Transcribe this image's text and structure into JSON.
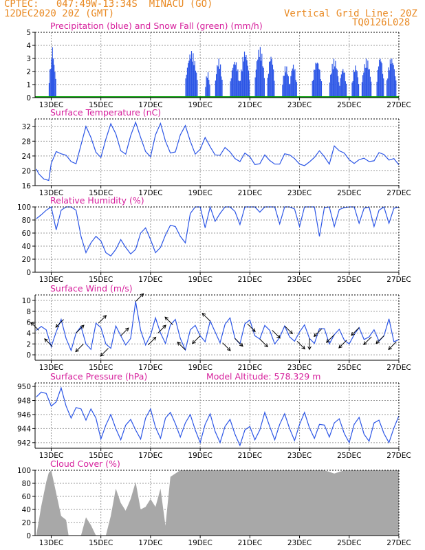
{
  "header": {
    "line1_left": "CPTEC:   047:49W-13:34S  MINACU (GO)",
    "line2_left": "12DEC2020 20Z (GMT)",
    "line2_right": "Vertical Grid Line: 20Z",
    "code": "TQ0126L028"
  },
  "colors": {
    "header_text": "#e98a24",
    "panel_title": "#d6209c",
    "series_line": "#2b55e6",
    "snow": "#00a000",
    "cloud_fill": "#a8a8a8",
    "grid": "#999999"
  },
  "chart_data": [
    {
      "id": "precip",
      "type": "bar",
      "title": "Precipitation (blue) and Snow Fall (green) (mm/h)",
      "ylim": [
        0,
        5
      ],
      "yticks": [
        0,
        1,
        2,
        3,
        4,
        5
      ],
      "xlim": [
        12.35,
        27.0
      ],
      "xticks": [
        "13DEC",
        "15DEC",
        "17DEC",
        "19DEC",
        "21DEC",
        "23DEC",
        "25DEC",
        "27DEC"
      ],
      "grid": true,
      "note_series": [
        {
          "name": "Precipitation"
        },
        {
          "name": "Snow Fall"
        }
      ],
      "snow_values": 0,
      "rain_bursts": [
        [
          12.9,
          13.2,
          3.2
        ],
        [
          13.0,
          13.1,
          4.5
        ],
        [
          18.4,
          18.9,
          3.6
        ],
        [
          19.2,
          19.4,
          2.0
        ],
        [
          19.6,
          19.9,
          3.0
        ],
        [
          20.2,
          20.6,
          2.9
        ],
        [
          20.6,
          21.0,
          3.6
        ],
        [
          21.2,
          21.6,
          3.9
        ],
        [
          21.7,
          22.0,
          3.3
        ],
        [
          22.3,
          22.6,
          2.5
        ],
        [
          22.6,
          22.9,
          2.6
        ],
        [
          23.5,
          23.9,
          2.9
        ],
        [
          24.2,
          24.6,
          3.0
        ],
        [
          24.6,
          24.9,
          2.3
        ],
        [
          25.1,
          25.4,
          2.5
        ],
        [
          25.5,
          25.9,
          3.0
        ],
        [
          26.1,
          26.4,
          3.2
        ],
        [
          26.5,
          26.9,
          3.1
        ]
      ]
    },
    {
      "id": "temp",
      "type": "line",
      "title": "Surface Temperature (nC)",
      "ylim": [
        16,
        34
      ],
      "yticks": [
        16,
        20,
        24,
        28,
        32
      ],
      "xlim": [
        12.35,
        27.0
      ],
      "xticks": [
        "13DEC",
        "15DEC",
        "17DEC",
        "19DEC",
        "21DEC",
        "23DEC",
        "25DEC",
        "27DEC"
      ],
      "grid": true,
      "x": [
        12.4,
        12.5,
        12.7,
        12.9,
        13.0,
        13.2,
        13.4,
        13.6,
        13.8,
        14.0,
        14.2,
        14.4,
        14.6,
        14.8,
        15.0,
        15.2,
        15.4,
        15.6,
        15.8,
        16.0,
        16.2,
        16.4,
        16.6,
        16.8,
        17.0,
        17.2,
        17.4,
        17.6,
        17.8,
        18.0,
        18.2,
        18.4,
        18.6,
        18.8,
        19.0,
        19.2,
        19.4,
        19.6,
        19.8,
        20.0,
        20.2,
        20.4,
        20.6,
        20.8,
        21.0,
        21.2,
        21.4,
        21.6,
        21.8,
        22.0,
        22.2,
        22.4,
        22.6,
        22.8,
        23.0,
        23.2,
        23.4,
        23.6,
        23.8,
        24.0,
        24.2,
        24.4,
        24.6,
        24.8,
        25.0,
        25.2,
        25.4,
        25.6,
        25.8,
        26.0,
        26.2,
        26.4,
        26.6,
        26.8,
        27.0
      ],
      "values": [
        20.5,
        19.2,
        17.8,
        17.4,
        22.0,
        25.2,
        24.6,
        24.2,
        22.5,
        21.9,
        27.0,
        32.0,
        29.0,
        25.0,
        23.6,
        28.5,
        32.7,
        30.0,
        25.4,
        24.5,
        29.5,
        33.1,
        29.0,
        25.2,
        23.8,
        29.7,
        32.8,
        28.0,
        24.8,
        25.1,
        29.7,
        32.2,
        28.0,
        24.5,
        25.8,
        29.0,
        26.5,
        24.3,
        24.2,
        26.3,
        25.1,
        23.3,
        22.5,
        24.8,
        23.8,
        21.7,
        21.9,
        24.3,
        22.8,
        21.8,
        21.8,
        24.6,
        24.3,
        23.3,
        21.8,
        21.4,
        22.4,
        23.6,
        25.4,
        23.8,
        21.8,
        26.7,
        25.4,
        24.8,
        23.0,
        22.0,
        23.0,
        23.4,
        22.5,
        22.7,
        24.9,
        24.4,
        22.9,
        23.3,
        21.6
      ]
    },
    {
      "id": "rh",
      "type": "line",
      "title": "Relative Humidity (%)",
      "ylim": [
        0,
        100
      ],
      "yticks": [
        0,
        20,
        40,
        60,
        80,
        100
      ],
      "xlim": [
        12.35,
        27.0
      ],
      "xticks": [
        "13DEC",
        "15DEC",
        "17DEC",
        "19DEC",
        "21DEC",
        "23DEC",
        "25DEC",
        "27DEC"
      ],
      "grid": true,
      "x": [
        12.4,
        12.6,
        12.8,
        13.0,
        13.2,
        13.4,
        13.6,
        13.8,
        14.0,
        14.2,
        14.4,
        14.6,
        14.8,
        15.0,
        15.2,
        15.4,
        15.6,
        15.8,
        16.0,
        16.2,
        16.4,
        16.6,
        16.8,
        17.0,
        17.2,
        17.4,
        17.6,
        17.8,
        18.0,
        18.2,
        18.4,
        18.6,
        18.8,
        19.0,
        19.2,
        19.4,
        19.6,
        19.8,
        20.0,
        20.2,
        20.4,
        20.6,
        20.8,
        21.0,
        21.2,
        21.4,
        21.6,
        21.8,
        22.0,
        22.2,
        22.4,
        22.6,
        22.8,
        23.0,
        23.2,
        23.4,
        23.6,
        23.8,
        24.0,
        24.2,
        24.4,
        24.6,
        24.8,
        25.0,
        25.2,
        25.4,
        25.6,
        25.8,
        26.0,
        26.2,
        26.4,
        26.6,
        26.8,
        27.0
      ],
      "values": [
        82,
        88,
        95,
        100,
        65,
        95,
        100,
        100,
        95,
        55,
        30,
        45,
        55,
        48,
        30,
        25,
        35,
        50,
        38,
        28,
        35,
        60,
        68,
        50,
        30,
        38,
        57,
        72,
        70,
        55,
        45,
        90,
        100,
        100,
        68,
        100,
        78,
        90,
        100,
        100,
        93,
        73,
        100,
        100,
        100,
        92,
        100,
        100,
        100,
        74,
        100,
        100,
        97,
        70,
        100,
        100,
        100,
        55,
        99,
        100,
        70,
        96,
        99,
        100,
        100,
        75,
        98,
        100,
        70,
        95,
        100,
        75,
        98,
        100
      ]
    },
    {
      "id": "wind",
      "type": "line",
      "title": "Surface Wind (m/s)",
      "ylim": [
        -1,
        11
      ],
      "yticks": [
        0,
        2,
        4,
        6,
        8,
        10
      ],
      "xlim": [
        12.35,
        27.0
      ],
      "xticks": [
        "13DEC",
        "15DEC",
        "17DEC",
        "19DEC",
        "21DEC",
        "23DEC",
        "25DEC",
        "27DEC"
      ],
      "grid": true,
      "x": [
        12.4,
        12.6,
        12.8,
        13.0,
        13.2,
        13.4,
        13.6,
        13.8,
        14.0,
        14.2,
        14.4,
        14.6,
        14.8,
        15.0,
        15.2,
        15.4,
        15.6,
        15.8,
        16.0,
        16.2,
        16.4,
        16.6,
        16.8,
        17.0,
        17.2,
        17.4,
        17.6,
        17.8,
        18.0,
        18.2,
        18.4,
        18.6,
        18.8,
        19.0,
        19.2,
        19.4,
        19.6,
        19.8,
        20.0,
        20.2,
        20.4,
        20.6,
        20.8,
        21.0,
        21.2,
        21.4,
        21.6,
        21.8,
        22.0,
        22.2,
        22.4,
        22.6,
        22.8,
        23.0,
        23.2,
        23.4,
        23.6,
        23.8,
        24.0,
        24.2,
        24.4,
        24.6,
        24.8,
        25.0,
        25.2,
        25.4,
        25.6,
        25.8,
        26.0,
        26.2,
        26.4,
        26.6,
        26.8,
        27.0
      ],
      "values": [
        4.5,
        5.2,
        4.6,
        1.5,
        4.2,
        6.5,
        3.0,
        0.8,
        4.0,
        5.2,
        2.0,
        1.0,
        5.8,
        5.0,
        2.0,
        1.2,
        5.3,
        3.5,
        1.8,
        3.0,
        9.8,
        4.5,
        1.8,
        3.6,
        6.8,
        4.0,
        2.1,
        5.5,
        6.5,
        3.0,
        0.9,
        4.6,
        5.4,
        3.5,
        2.4,
        6.2,
        4.2,
        2.2,
        5.6,
        6.8,
        3.0,
        2.0,
        5.7,
        6.4,
        3.5,
        2.9,
        5.4,
        4.5,
        2.0,
        3.2,
        5.3,
        3.3,
        2.5,
        4.2,
        5.5,
        3.0,
        2.1,
        4.8,
        4.8,
        2.0,
        3.7,
        4.7,
        2.7,
        2.0,
        3.7,
        5.0,
        2.8,
        3.3,
        4.6,
        2.5,
        3.5,
        6.6,
        2.4,
        2.8
      ],
      "arrow_x": [
        12.5,
        13.05,
        13.5,
        14.0,
        14.3,
        14.9,
        15.3,
        15.8,
        16.4,
        16.9,
        17.3,
        17.9,
        18.4,
        19.0,
        19.4,
        19.9,
        20.4,
        20.9,
        21.4,
        21.9,
        22.4,
        22.9,
        23.4,
        23.9,
        24.4,
        24.9,
        25.4,
        25.9,
        26.4,
        26.9
      ],
      "arrow_dirdeg": [
        135,
        135,
        225,
        45,
        225,
        45,
        225,
        45,
        45,
        45,
        45,
        135,
        135,
        225,
        135,
        315,
        315,
        315,
        315,
        315,
        315,
        315,
        270,
        225,
        225,
        225,
        225,
        225,
        225,
        225
      ]
    },
    {
      "id": "pres",
      "type": "line",
      "title": "Surface Pressure (hPa)",
      "subtitle": "Model Altitude: 578.329  m",
      "ylim": [
        941.2,
        950.5
      ],
      "yticks": [
        942,
        944,
        946,
        948,
        950
      ],
      "xlim": [
        12.35,
        27.0
      ],
      "xticks": [
        "13DEC",
        "15DEC",
        "17DEC",
        "19DEC",
        "21DEC",
        "23DEC",
        "25DEC",
        "27DEC"
      ],
      "grid": true,
      "x": [
        12.4,
        12.6,
        12.8,
        13.0,
        13.2,
        13.4,
        13.6,
        13.8,
        14.0,
        14.2,
        14.4,
        14.6,
        14.8,
        15.0,
        15.2,
        15.4,
        15.6,
        15.8,
        16.0,
        16.2,
        16.4,
        16.6,
        16.8,
        17.0,
        17.2,
        17.4,
        17.6,
        17.8,
        18.0,
        18.2,
        18.4,
        18.6,
        18.8,
        19.0,
        19.2,
        19.4,
        19.6,
        19.8,
        20.0,
        20.2,
        20.4,
        20.6,
        20.8,
        21.0,
        21.2,
        21.4,
        21.6,
        21.8,
        22.0,
        22.2,
        22.4,
        22.6,
        22.8,
        23.0,
        23.2,
        23.4,
        23.6,
        23.8,
        24.0,
        24.2,
        24.4,
        24.6,
        24.8,
        25.0,
        25.2,
        25.4,
        25.6,
        25.8,
        26.0,
        26.2,
        26.4,
        26.6,
        26.8,
        27.0
      ],
      "values": [
        948.5,
        949.2,
        949.0,
        947.2,
        947.8,
        949.8,
        947.2,
        945.5,
        947.0,
        946.8,
        945.2,
        946.8,
        945.5,
        942.5,
        944.5,
        946.0,
        944.0,
        942.4,
        944.5,
        945.3,
        943.8,
        942.5,
        945.5,
        946.8,
        944.2,
        942.6,
        945.5,
        946.3,
        944.7,
        942.8,
        944.8,
        946.0,
        943.8,
        942.0,
        944.6,
        946.1,
        943.6,
        942.0,
        944.3,
        945.3,
        943.2,
        941.6,
        943.8,
        944.3,
        942.4,
        943.8,
        946.3,
        944.3,
        942.4,
        944.6,
        946.1,
        944.0,
        942.3,
        944.6,
        946.3,
        944.1,
        942.6,
        944.6,
        944.5,
        942.8,
        944.8,
        945.4,
        943.3,
        942.0,
        944.6,
        945.6,
        943.2,
        942.2,
        944.8,
        945.2,
        943.3,
        942.0,
        944.1,
        945.8
      ]
    },
    {
      "id": "cloud",
      "type": "area",
      "title": "Cloud Cover (%)",
      "ylim": [
        0,
        100
      ],
      "yticks": [
        0,
        20,
        40,
        60,
        80,
        100
      ],
      "xlim": [
        12.35,
        27.0
      ],
      "xticks": [
        "13DEC",
        "15DEC",
        "17DEC",
        "19DEC",
        "21DEC",
        "23DEC",
        "25DEC",
        "27DEC"
      ],
      "grid": true,
      "x": [
        12.4,
        12.6,
        12.8,
        12.9,
        13.0,
        13.2,
        13.4,
        13.6,
        13.7,
        13.9,
        14.2,
        14.4,
        14.6,
        14.8,
        15.0,
        15.2,
        15.4,
        15.6,
        15.8,
        16.0,
        16.2,
        16.4,
        16.6,
        16.8,
        17.0,
        17.2,
        17.4,
        17.6,
        17.8,
        18.0,
        18.2,
        18.4,
        18.6,
        18.8,
        19.0,
        19.2,
        19.4,
        19.6,
        19.8,
        20.0,
        20.4,
        20.8,
        21.2,
        21.6,
        22.0,
        22.4,
        22.8,
        23.2,
        23.6,
        24.0,
        24.4,
        24.8,
        25.2,
        25.6,
        26.0,
        26.4,
        26.8,
        27.0
      ],
      "values": [
        0,
        45,
        82,
        96,
        100,
        65,
        30,
        24,
        0,
        0,
        0,
        28,
        16,
        0,
        0,
        0,
        30,
        72,
        50,
        38,
        56,
        82,
        40,
        44,
        56,
        44,
        72,
        15,
        90,
        95,
        100,
        100,
        100,
        100,
        100,
        100,
        100,
        100,
        100,
        100,
        100,
        100,
        100,
        100,
        100,
        100,
        100,
        100,
        100,
        100,
        95,
        100,
        100,
        100,
        100,
        100,
        100,
        100
      ]
    }
  ]
}
